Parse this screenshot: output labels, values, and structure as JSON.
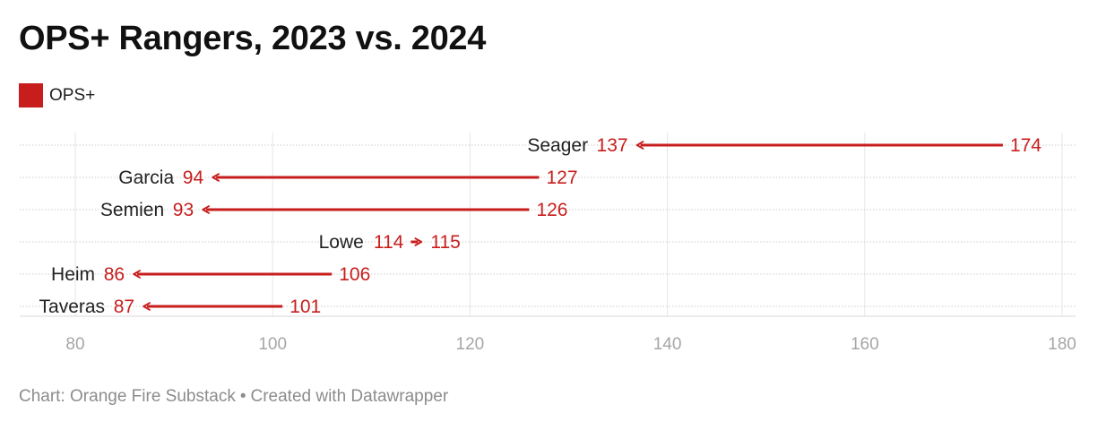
{
  "title": "OPS+ Rangers, 2023 vs. 2024",
  "legend": {
    "label": "OPS+",
    "color": "#c71e1d"
  },
  "footer": {
    "source": "Chart: Orange Fire Substack",
    "separator": "•",
    "credit": "Created with Datawrapper"
  },
  "colors": {
    "accent": "#c71e1d",
    "grid": "#e6e6e6",
    "tick_text": "#a6a6a6",
    "label_text": "#222222"
  },
  "chart_data": {
    "type": "arrow",
    "title": "OPS+ Rangers, 2023 vs. 2024",
    "series": [
      {
        "name": "2023",
        "values": [
          174,
          127,
          126,
          114,
          106,
          101
        ]
      },
      {
        "name": "2024",
        "values": [
          137,
          94,
          93,
          115,
          86,
          87
        ]
      }
    ],
    "categories": [
      "Seager",
      "Garcia",
      "Semien",
      "Lowe",
      "Heim",
      "Taveras"
    ],
    "xlim": [
      80,
      180
    ],
    "xticks": [
      "80",
      "100",
      "120",
      "140",
      "160",
      "180"
    ],
    "grid": true
  }
}
